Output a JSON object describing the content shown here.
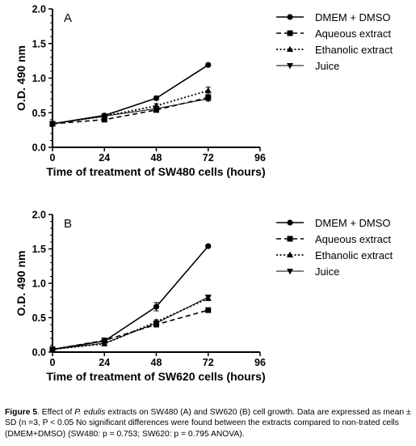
{
  "chart_data": [
    {
      "type": "line",
      "panel_label": "A",
      "xlabel": "Time of treatment of SW480 cells (hours)",
      "ylabel": "O.D. 490 nm",
      "xlim": [
        0,
        96
      ],
      "ylim": [
        0.0,
        2.0
      ],
      "xticks": [
        0,
        24,
        48,
        72,
        96
      ],
      "xtick_labels": [
        "0",
        "24",
        "48",
        "72",
        "96"
      ],
      "yticks": [
        0.0,
        0.5,
        1.0,
        1.5,
        2.0
      ],
      "ytick_labels": [
        "0.0",
        "0.5",
        "1.0",
        "1.5",
        "2.0"
      ],
      "grid": false,
      "legend_position": "top-right",
      "series": [
        {
          "name": "DMEM + DMSO",
          "marker": "circle",
          "line": "solid",
          "x": [
            0,
            24,
            48,
            72
          ],
          "y": [
            0.34,
            0.46,
            0.71,
            1.19
          ],
          "err": [
            0.02,
            0.02,
            0.03,
            0.02
          ]
        },
        {
          "name": "Aqueous extract",
          "marker": "square",
          "line": "dashed",
          "x": [
            0,
            24,
            48,
            72
          ],
          "y": [
            0.34,
            0.4,
            0.54,
            0.72
          ],
          "err": [
            0.02,
            0.02,
            0.03,
            0.03
          ]
        },
        {
          "name": "Ethanolic extract",
          "marker": "triangle-up",
          "line": "dotted",
          "x": [
            0,
            24,
            48,
            72
          ],
          "y": [
            0.34,
            0.45,
            0.6,
            0.82
          ],
          "err": [
            0.02,
            0.02,
            0.03,
            0.05
          ]
        },
        {
          "name": "Juice",
          "marker": "triangle-down",
          "line": "solid-thin",
          "x": [
            0,
            24,
            48,
            72
          ],
          "y": [
            0.34,
            0.45,
            0.56,
            0.7
          ],
          "err": [
            0.02,
            0.02,
            0.03,
            0.03
          ]
        }
      ]
    },
    {
      "type": "line",
      "panel_label": "B",
      "xlabel": "Time of treatment of SW620 cells (hours)",
      "ylabel": "O.D. 490 nm",
      "xlim": [
        0,
        96
      ],
      "ylim": [
        0.0,
        2.0
      ],
      "xticks": [
        0,
        24,
        48,
        72,
        96
      ],
      "xtick_labels": [
        "0",
        "24",
        "48",
        "72",
        "96"
      ],
      "yticks": [
        0.0,
        0.5,
        1.0,
        1.5,
        2.0
      ],
      "ytick_labels": [
        "0.0",
        "0.5",
        "1.0",
        "1.5",
        "2.0"
      ],
      "grid": false,
      "legend_position": "top-right",
      "series": [
        {
          "name": "DMEM + DMSO",
          "marker": "circle",
          "line": "solid",
          "x": [
            0,
            24,
            48,
            72
          ],
          "y": [
            0.04,
            0.16,
            0.66,
            1.54
          ],
          "err": [
            0.01,
            0.03,
            0.06,
            0.02
          ]
        },
        {
          "name": "Aqueous extract",
          "marker": "square",
          "line": "dashed",
          "x": [
            0,
            24,
            48,
            72
          ],
          "y": [
            0.04,
            0.17,
            0.4,
            0.61
          ],
          "err": [
            0.01,
            0.02,
            0.03,
            0.03
          ]
        },
        {
          "name": "Ethanolic extract",
          "marker": "triangle-up",
          "line": "dotted",
          "x": [
            0,
            24,
            48,
            72
          ],
          "y": [
            0.04,
            0.12,
            0.44,
            0.78
          ],
          "err": [
            0.01,
            0.02,
            0.03,
            0.03
          ]
        },
        {
          "name": "Juice",
          "marker": "triangle-down",
          "line": "solid-thin",
          "x": [
            0,
            24,
            48,
            72
          ],
          "y": [
            0.04,
            0.13,
            0.42,
            0.8
          ],
          "err": [
            0.01,
            0.02,
            0.03,
            0.03
          ]
        }
      ]
    }
  ],
  "caption": {
    "label": "Figure 5",
    "part1": ". Effect of ",
    "species": "P. edulis",
    "part2": " extracts on SW480 (A) and SW620 (B) cell growth. Data are expressed as mean ± SD (n =3, P < 0.05 No significant differences were found between the extracts compared to non-trated cells (DMEM+DMSO) (SW480: p = 0.753; SW620: p = 0.795 ANOVA)."
  }
}
